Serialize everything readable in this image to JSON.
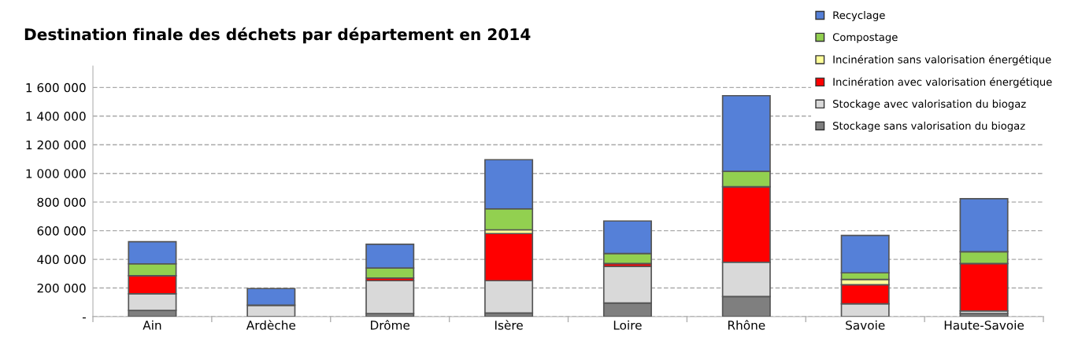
{
  "chart_data": {
    "type": "bar",
    "title": "Destination finale des déchets par département en 2014",
    "categories": [
      "Ain",
      "Ardèche",
      "Drôme",
      "Isère",
      "Loire",
      "Rhône",
      "Savoie",
      "Haute-Savoie"
    ],
    "stacked": true,
    "series": [
      {
        "name": "Stockage sans valorisation du biogaz",
        "color": "#7f7f7f",
        "values": [
          44000,
          0,
          22000,
          25000,
          95000,
          141000,
          0,
          22000
        ]
      },
      {
        "name": "Stockage avec valorisation du biogaz",
        "color": "#d9d9d9",
        "values": [
          116000,
          80000,
          229000,
          226000,
          255000,
          239000,
          90000,
          18000
        ]
      },
      {
        "name": "Incinération avec valorisation énergétique",
        "color": "#ff0000",
        "values": [
          126000,
          null,
          19000,
          329000,
          21000,
          527000,
          133000,
          331000
        ]
      },
      {
        "name": "Incinération sans valorisation énergétique",
        "color": "#ffff99",
        "values": [
          0,
          0,
          0,
          26000,
          0,
          0,
          37000,
          0
        ]
      },
      {
        "name": "Compostage",
        "color": "#92d050",
        "values": [
          83000,
          null,
          69000,
          147000,
          70000,
          107000,
          46000,
          82000
        ]
      },
      {
        "name": "Recyclage",
        "color": "#5580d8",
        "values": [
          154000,
          116000,
          166000,
          343000,
          227000,
          529000,
          261000,
          371000
        ]
      }
    ],
    "ylim": [
      0,
      1750000
    ],
    "yticks": [
      {
        "value": 0,
        "label": "-"
      },
      {
        "value": 200000,
        "label": "200 000"
      },
      {
        "value": 400000,
        "label": "400 000"
      },
      {
        "value": 600000,
        "label": "600 000"
      },
      {
        "value": 800000,
        "label": "800 000"
      },
      {
        "value": 1000000,
        "label": "1 000 000"
      },
      {
        "value": 1200000,
        "label": "1 200 000"
      },
      {
        "value": 1400000,
        "label": "1 400 000"
      },
      {
        "value": 1600000,
        "label": "1 600 000"
      }
    ],
    "grid": "y",
    "legend": "top right"
  }
}
